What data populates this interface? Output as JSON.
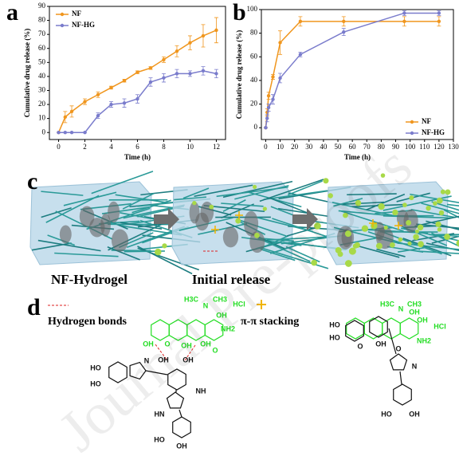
{
  "chart_data": [
    {
      "type": "line",
      "x_label": "Time (h)",
      "y_label": "Cumulative drug release (%)",
      "x": [
        0,
        0.5,
        1,
        2,
        3,
        4,
        5,
        6,
        7,
        8,
        9,
        10,
        11,
        12
      ],
      "series": [
        {
          "name": "NF",
          "color": "#f0961e",
          "values": [
            0,
            11,
            15,
            22,
            27,
            32,
            37,
            43,
            46,
            52,
            58,
            64,
            69,
            73
          ],
          "errors": [
            0,
            4,
            4,
            2,
            2,
            1,
            1,
            1,
            1,
            2,
            4,
            5,
            8,
            9
          ]
        },
        {
          "name": "NF-HG",
          "color": "#7a7ccc",
          "values": [
            0,
            0,
            0,
            0,
            12,
            20,
            21,
            24,
            36,
            39,
            42,
            42,
            44,
            42
          ],
          "errors": [
            0,
            0,
            0,
            0,
            2,
            2,
            3,
            3,
            3,
            3,
            3,
            2,
            3,
            3
          ]
        }
      ],
      "xlim": [
        -0.7,
        12.7
      ],
      "xticks": [
        0,
        2,
        4,
        6,
        8,
        10,
        12
      ],
      "ylim": [
        -5,
        90
      ],
      "yticks": [
        0,
        10,
        20,
        30,
        40,
        50,
        60,
        70,
        80,
        90
      ],
      "legend": "upper left"
    },
    {
      "type": "line",
      "x_label": "Time (h)",
      "y_label": "Cumulative drug release (%)",
      "x": [
        0,
        1,
        2,
        5,
        10,
        24,
        54,
        96,
        120
      ],
      "series": [
        {
          "name": "NF",
          "color": "#f0961e",
          "values": [
            0,
            13,
            27,
            43,
            72,
            90,
            90,
            90,
            90
          ],
          "errors": [
            0,
            3,
            3,
            2,
            10,
            4,
            4,
            4,
            4
          ]
        },
        {
          "name": "NF-HG",
          "color": "#7a7ccc",
          "values": [
            0,
            8,
            17,
            24,
            42,
            62,
            81,
            97,
            97
          ],
          "errors": [
            0,
            3,
            3,
            4,
            4,
            2,
            3,
            2,
            2
          ]
        }
      ],
      "xlim": [
        -3,
        130
      ],
      "xticks": [
        0,
        10,
        20,
        30,
        40,
        50,
        60,
        70,
        80,
        90,
        100,
        110,
        120,
        130
      ],
      "ylim": [
        -10,
        100
      ],
      "yticks": [
        0,
        20,
        40,
        60,
        80,
        100
      ],
      "legend": "lower right"
    }
  ],
  "panel_labels": [
    "a",
    "b",
    "c",
    "d"
  ],
  "stages": [
    "NF-Hydrogel",
    "Initial  release",
    "Sustained  release"
  ],
  "interactions": [
    "Hydrogen bonds",
    "π-π stacking"
  ],
  "structure_labels": [
    "HO",
    "HO",
    "N",
    "OH",
    "OH",
    "NH",
    "HN",
    "HO",
    "OH",
    "OH",
    "O",
    "OH",
    "OH",
    "O",
    "NH2",
    "OH",
    "H3C",
    "N",
    "CH3",
    "HCl",
    "HO",
    "HO",
    "O",
    "OH",
    "OH",
    "O",
    "NH2",
    "HCl",
    "H3C",
    "N",
    "CH3",
    "OH",
    "N",
    "HO",
    "OH"
  ],
  "watermark": "Journal Pre-proofs"
}
